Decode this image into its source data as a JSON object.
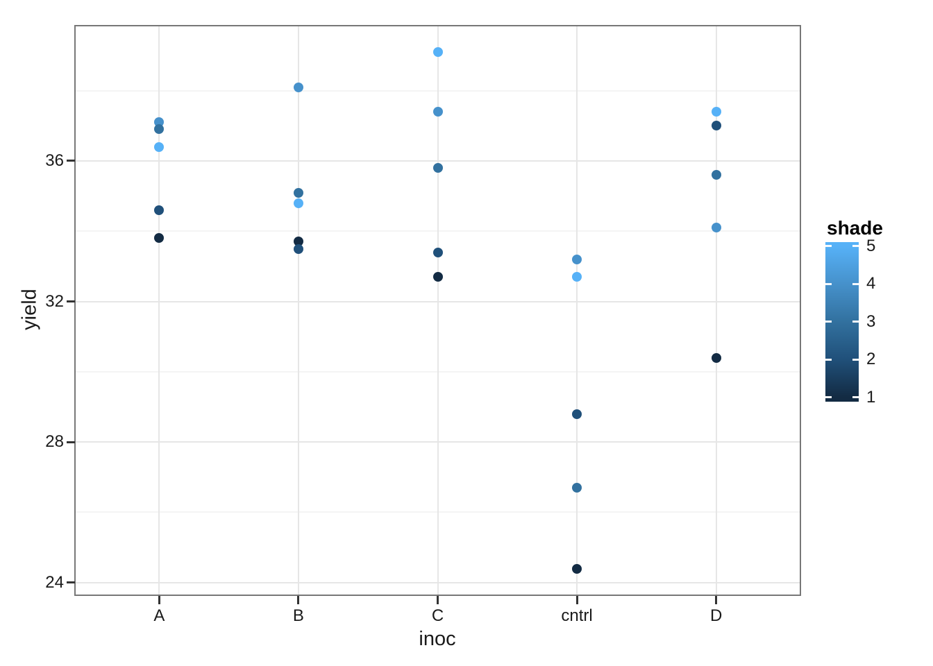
{
  "chart_data": {
    "type": "scatter",
    "title": "",
    "xlabel": "inoc",
    "ylabel": "yield",
    "x_categories": [
      "A",
      "B",
      "C",
      "cntrl",
      "D"
    ],
    "y_ticks": [
      36,
      32,
      28,
      24
    ],
    "y_minor_ticks": [
      38,
      34,
      30,
      26
    ],
    "y_range_displayed": [
      23.66,
      39.83
    ],
    "grid": "on",
    "legend_position": "right",
    "color_scale": {
      "name": "shade",
      "low_value": 1,
      "high_value": 5,
      "low_color": "#132B43",
      "high_color": "#56B1F7",
      "legend_ticks": [
        5,
        4,
        3,
        2,
        1
      ]
    },
    "shade_colors": {
      "1": "#132B43",
      "2": "#20507A",
      "3": "#32719F",
      "4": "#4691CB",
      "5": "#56B1F7"
    },
    "points": [
      {
        "inoc": "A",
        "yield": 37.1,
        "shade": 4
      },
      {
        "inoc": "A",
        "yield": 36.9,
        "shade": 3
      },
      {
        "inoc": "A",
        "yield": 36.4,
        "shade": 5
      },
      {
        "inoc": "A",
        "yield": 34.6,
        "shade": 2
      },
      {
        "inoc": "A",
        "yield": 33.8,
        "shade": 1
      },
      {
        "inoc": "B",
        "yield": 38.1,
        "shade": 4
      },
      {
        "inoc": "B",
        "yield": 35.1,
        "shade": 3
      },
      {
        "inoc": "B",
        "yield": 34.8,
        "shade": 5
      },
      {
        "inoc": "B",
        "yield": 33.7,
        "shade": 1
      },
      {
        "inoc": "B",
        "yield": 33.5,
        "shade": 2
      },
      {
        "inoc": "C",
        "yield": 39.1,
        "shade": 5
      },
      {
        "inoc": "C",
        "yield": 37.4,
        "shade": 4
      },
      {
        "inoc": "C",
        "yield": 35.8,
        "shade": 3
      },
      {
        "inoc": "C",
        "yield": 33.4,
        "shade": 2
      },
      {
        "inoc": "C",
        "yield": 32.7,
        "shade": 1
      },
      {
        "inoc": "cntrl",
        "yield": 33.2,
        "shade": 4
      },
      {
        "inoc": "cntrl",
        "yield": 32.7,
        "shade": 5
      },
      {
        "inoc": "cntrl",
        "yield": 28.8,
        "shade": 2
      },
      {
        "inoc": "cntrl",
        "yield": 26.7,
        "shade": 3
      },
      {
        "inoc": "cntrl",
        "yield": 24.4,
        "shade": 1
      },
      {
        "inoc": "D",
        "yield": 37.4,
        "shade": 5
      },
      {
        "inoc": "D",
        "yield": 37.0,
        "shade": 2
      },
      {
        "inoc": "D",
        "yield": 35.6,
        "shade": 3
      },
      {
        "inoc": "D",
        "yield": 34.1,
        "shade": 4
      },
      {
        "inoc": "D",
        "yield": 30.4,
        "shade": 1
      }
    ]
  }
}
